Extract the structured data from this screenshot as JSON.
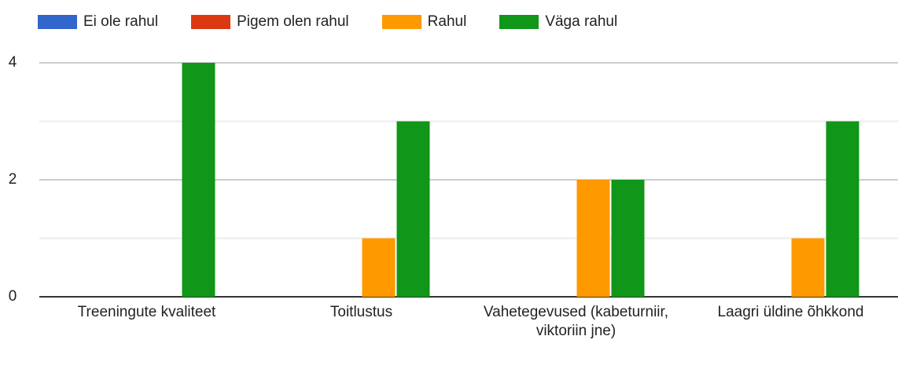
{
  "chart_data": {
    "type": "bar",
    "categories": [
      "Treeningute kvaliteet",
      "Toitlustus",
      "Vahetegevused (kabeturniir, viktoriin jne)",
      "Laagri üldine õhkkond"
    ],
    "series": [
      {
        "name": "Ei ole rahul",
        "color": "#3366cc",
        "values": [
          0,
          0,
          0,
          0
        ]
      },
      {
        "name": "Pigem olen rahul",
        "color": "#dc3912",
        "values": [
          0,
          0,
          0,
          0
        ]
      },
      {
        "name": "Rahul",
        "color": "#ff9900",
        "values": [
          0,
          1,
          2,
          1
        ]
      },
      {
        "name": "Väga rahul",
        "color": "#109618",
        "values": [
          4,
          3,
          2,
          3
        ]
      }
    ],
    "ylim": [
      0,
      4
    ],
    "yticks": [
      0,
      2,
      4
    ],
    "minor_yticks": [
      1,
      3
    ],
    "grid": true,
    "legend": "top"
  }
}
